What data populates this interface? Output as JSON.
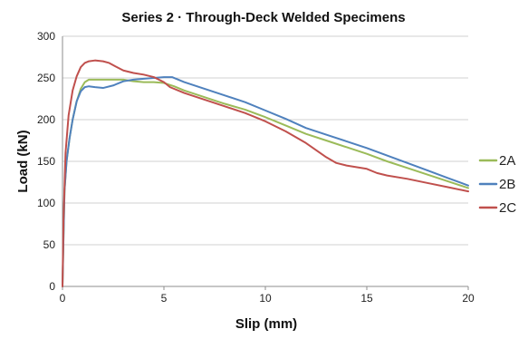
{
  "chart_data": {
    "type": "line",
    "title": "Series 2 · Through-Deck Welded Specimens",
    "xlabel": "Slip (mm)",
    "ylabel": "Load (kN)",
    "xlim": [
      0,
      20
    ],
    "ylim": [
      0,
      300
    ],
    "x_ticks": [
      0,
      5,
      10,
      15,
      20
    ],
    "y_ticks": [
      0,
      50,
      100,
      150,
      200,
      250,
      300
    ],
    "grid": "horizontal",
    "legend_position": "right",
    "series": [
      {
        "name": "2A",
        "color": "#9bbb59",
        "points": [
          [
            0,
            0
          ],
          [
            0.05,
            60
          ],
          [
            0.1,
            115
          ],
          [
            0.2,
            150
          ],
          [
            0.35,
            178
          ],
          [
            0.5,
            200
          ],
          [
            0.7,
            222
          ],
          [
            0.9,
            237
          ],
          [
            1.1,
            245
          ],
          [
            1.3,
            248
          ],
          [
            1.6,
            248
          ],
          [
            2.0,
            248
          ],
          [
            2.5,
            248
          ],
          [
            3.0,
            248
          ],
          [
            3.5,
            246
          ],
          [
            4.0,
            245
          ],
          [
            4.5,
            245
          ],
          [
            5.0,
            244
          ],
          [
            5.5,
            240
          ],
          [
            6,
            235
          ],
          [
            7,
            227
          ],
          [
            8,
            219
          ],
          [
            9,
            212
          ],
          [
            10,
            203
          ],
          [
            11,
            193
          ],
          [
            12,
            183
          ],
          [
            13,
            175
          ],
          [
            14,
            167
          ],
          [
            15,
            159
          ],
          [
            16,
            150
          ],
          [
            17,
            142
          ],
          [
            18,
            134
          ],
          [
            19,
            126
          ],
          [
            20,
            118
          ]
        ]
      },
      {
        "name": "2B",
        "color": "#4f81bd",
        "points": [
          [
            0,
            0
          ],
          [
            0.05,
            60
          ],
          [
            0.1,
            115
          ],
          [
            0.2,
            150
          ],
          [
            0.35,
            178
          ],
          [
            0.5,
            200
          ],
          [
            0.7,
            222
          ],
          [
            0.9,
            234
          ],
          [
            1.1,
            239
          ],
          [
            1.3,
            240
          ],
          [
            1.6,
            239
          ],
          [
            2.0,
            238
          ],
          [
            2.5,
            241
          ],
          [
            3.0,
            246
          ],
          [
            3.5,
            248
          ],
          [
            4.0,
            249
          ],
          [
            4.5,
            250
          ],
          [
            5.0,
            251
          ],
          [
            5.4,
            251
          ],
          [
            6,
            245
          ],
          [
            7,
            237
          ],
          [
            8,
            229
          ],
          [
            9,
            221
          ],
          [
            10,
            211
          ],
          [
            11,
            201
          ],
          [
            12,
            190
          ],
          [
            13,
            182
          ],
          [
            14,
            174
          ],
          [
            15,
            166
          ],
          [
            16,
            157
          ],
          [
            17,
            148
          ],
          [
            18,
            139
          ],
          [
            19,
            130
          ],
          [
            20,
            121
          ]
        ]
      },
      {
        "name": "2C",
        "color": "#c0504d",
        "points": [
          [
            0,
            0
          ],
          [
            0.05,
            80
          ],
          [
            0.15,
            160
          ],
          [
            0.3,
            205
          ],
          [
            0.5,
            235
          ],
          [
            0.7,
            252
          ],
          [
            0.9,
            263
          ],
          [
            1.1,
            268
          ],
          [
            1.3,
            270
          ],
          [
            1.6,
            271
          ],
          [
            2.0,
            270
          ],
          [
            2.3,
            268
          ],
          [
            2.6,
            264
          ],
          [
            3.0,
            259
          ],
          [
            3.5,
            256
          ],
          [
            4.0,
            254
          ],
          [
            4.5,
            251
          ],
          [
            5.0,
            245
          ],
          [
            5.3,
            239
          ],
          [
            6,
            232
          ],
          [
            7,
            224
          ],
          [
            8,
            216
          ],
          [
            9,
            208
          ],
          [
            10,
            198
          ],
          [
            11,
            186
          ],
          [
            12,
            172
          ],
          [
            13,
            155
          ],
          [
            13.5,
            148
          ],
          [
            14,
            145
          ],
          [
            15,
            141
          ],
          [
            15.5,
            136
          ],
          [
            16,
            133
          ],
          [
            17,
            129
          ],
          [
            18,
            124
          ],
          [
            19,
            119
          ],
          [
            20,
            114
          ]
        ]
      }
    ]
  }
}
